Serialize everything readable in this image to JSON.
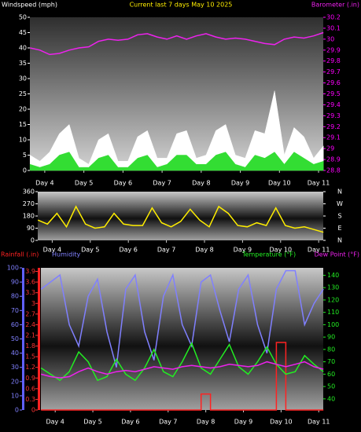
{
  "chart_data": [
    {
      "type": "line",
      "title": "Current last 7 days May 10 2025",
      "x": [
        3.625,
        3.875,
        4.125,
        4.375,
        4.625,
        4.875,
        5.125,
        5.375,
        5.625,
        5.875,
        6.125,
        6.375,
        6.625,
        6.875,
        7.125,
        7.375,
        7.625,
        7.875,
        8.125,
        8.375,
        8.625,
        8.875,
        9.125,
        9.375,
        9.625,
        9.875,
        10.125,
        10.375,
        10.625,
        10.875,
        11.125
      ],
      "xlim": [
        3.62,
        11.12
      ],
      "xticks": [
        {
          "value": 4,
          "label": "Day 4"
        },
        {
          "value": 5,
          "label": "Day 5"
        },
        {
          "value": 6,
          "label": "Day 6"
        },
        {
          "value": 7,
          "label": "Day 7"
        },
        {
          "value": 8,
          "label": "Day 8"
        },
        {
          "value": 9,
          "label": "Day 9"
        },
        {
          "value": 10,
          "label": "Day 10"
        },
        {
          "value": 11,
          "label": "Day 11"
        }
      ],
      "ylim": [
        0,
        50
      ],
      "yticks": [
        0,
        5,
        10,
        15,
        20,
        25,
        30,
        35,
        40,
        45,
        50
      ],
      "y2lim": [
        28.8,
        30.2
      ],
      "y2ticks": [
        28.8,
        28.9,
        29,
        29.1,
        29.2,
        29.3,
        29.4,
        29.5,
        29.6,
        29.7,
        29.8,
        29.9,
        30,
        30.1,
        30.2
      ],
      "series": [
        {
          "name": "Windspeed (mph)",
          "color": "#ffffff",
          "style": "area",
          "values": [
            5,
            3,
            6,
            12,
            15,
            4,
            2,
            10,
            12,
            3,
            3,
            11,
            13,
            4,
            4,
            12,
            13,
            4,
            5,
            13,
            15,
            5,
            4,
            13,
            12,
            26,
            5,
            14,
            11,
            4,
            8
          ]
        },
        {
          "color": "#33dd33",
          "style": "area",
          "values": [
            2,
            1,
            2,
            5,
            6,
            1,
            1,
            4,
            5,
            1,
            1,
            4,
            5,
            1,
            2,
            5,
            5,
            2,
            2,
            5,
            6,
            2,
            1,
            5,
            4,
            6,
            2,
            6,
            4,
            2,
            3
          ]
        },
        {
          "name": "Barometer (.in)",
          "color": "#ee22ee",
          "style": "line",
          "axis": "y2",
          "values": [
            29.92,
            29.9,
            29.86,
            29.87,
            29.9,
            29.92,
            29.93,
            29.98,
            30.0,
            29.99,
            30.0,
            30.04,
            30.05,
            30.02,
            30.0,
            30.03,
            30.0,
            30.03,
            30.05,
            30.02,
            30.0,
            30.01,
            30.0,
            29.98,
            29.96,
            29.95,
            30.0,
            30.02,
            30.01,
            30.03,
            30.06
          ]
        }
      ]
    },
    {
      "type": "line",
      "x": [
        3.625,
        3.875,
        4.125,
        4.375,
        4.625,
        4.875,
        5.125,
        5.375,
        5.625,
        5.875,
        6.125,
        6.375,
        6.625,
        6.875,
        7.125,
        7.375,
        7.625,
        7.875,
        8.125,
        8.375,
        8.625,
        8.875,
        9.125,
        9.375,
        9.625,
        9.875,
        10.125,
        10.375,
        10.625,
        10.875,
        11.125
      ],
      "xlim": [
        3.62,
        11.12
      ],
      "xticks": [
        {
          "value": 4,
          "label": "Day 4"
        },
        {
          "value": 5,
          "label": "Day 5"
        },
        {
          "value": 6,
          "label": "Day 6"
        },
        {
          "value": 7,
          "label": "Day 7"
        },
        {
          "value": 8,
          "label": "Day 8"
        },
        {
          "value": 9,
          "label": "Day 9"
        },
        {
          "value": 10,
          "label": "Day 10"
        },
        {
          "value": 11,
          "label": "Day 11"
        }
      ],
      "ylim": [
        0,
        360
      ],
      "yticks": [
        0,
        90,
        180,
        270,
        360
      ],
      "y2lim": [
        0,
        360
      ],
      "y2ticks": [
        {
          "value": 360,
          "label": "N"
        },
        {
          "value": 270,
          "label": "W"
        },
        {
          "value": 180,
          "label": "S"
        },
        {
          "value": 90,
          "label": "E"
        },
        {
          "value": 0,
          "label": "N"
        }
      ],
      "series": [
        {
          "color": "#ffee00",
          "style": "line",
          "values": [
            150,
            120,
            200,
            100,
            250,
            120,
            90,
            100,
            200,
            120,
            110,
            110,
            240,
            130,
            100,
            140,
            230,
            150,
            100,
            250,
            200,
            110,
            100,
            130,
            110,
            240,
            110,
            90,
            100,
            80,
            60
          ]
        }
      ]
    },
    {
      "type": "line",
      "x": [
        3.625,
        3.875,
        4.125,
        4.375,
        4.625,
        4.875,
        5.125,
        5.375,
        5.625,
        5.875,
        6.125,
        6.375,
        6.625,
        6.875,
        7.125,
        7.375,
        7.625,
        7.875,
        8.125,
        8.375,
        8.625,
        8.875,
        9.125,
        9.375,
        9.625,
        9.875,
        10.125,
        10.375,
        10.625,
        10.875,
        11.125
      ],
      "xlim": [
        3.62,
        11.12
      ],
      "xticks": [
        {
          "value": 4,
          "label": "Day 4"
        },
        {
          "value": 5,
          "label": "Day 5"
        },
        {
          "value": 6,
          "label": "Day 6"
        },
        {
          "value": 7,
          "label": "Day 7"
        },
        {
          "value": 8,
          "label": "Day 8"
        },
        {
          "value": 9,
          "label": "Day 9"
        },
        {
          "value": 10,
          "label": "Day 10"
        },
        {
          "value": 11,
          "label": "Day 11"
        }
      ],
      "ylim": [
        0,
        100
      ],
      "yticks": [
        0,
        10,
        20,
        30,
        40,
        50,
        60,
        70,
        80,
        90,
        100
      ],
      "y2lim": [
        31,
        146
      ],
      "y2ticks": [
        40,
        50,
        60,
        70,
        80,
        90,
        100,
        110,
        120,
        130,
        140
      ],
      "y3lim": [
        0,
        4
      ],
      "y3ticks": [
        0,
        0.3,
        0.6,
        0.9,
        1.2,
        1.5,
        1.8,
        2.1,
        2.4,
        2.7,
        3,
        3.3,
        3.6,
        3.9
      ],
      "series": [
        {
          "name": "Rainfall (.in)",
          "color": "#ff2222",
          "style": "step",
          "axis": "y3",
          "values": [
            0,
            0,
            0,
            0,
            0,
            0,
            0,
            0,
            0,
            0,
            0,
            0,
            0,
            0,
            0,
            0,
            0,
            0.45,
            0,
            0,
            0,
            0,
            0,
            0,
            0,
            1.9,
            0,
            0,
            0,
            0,
            0
          ]
        },
        {
          "name": "Humidity",
          "color": "#8080ff",
          "style": "line",
          "values": [
            85,
            90,
            95,
            60,
            45,
            80,
            92,
            55,
            30,
            85,
            95,
            55,
            35,
            80,
            95,
            60,
            45,
            90,
            95,
            70,
            48,
            85,
            95,
            60,
            40,
            85,
            98,
            98,
            60,
            75,
            85
          ]
        },
        {
          "name": "Temperature (°F)",
          "color": "#22ee22",
          "style": "line",
          "axis": "y2",
          "values": [
            65,
            60,
            55,
            62,
            78,
            70,
            55,
            58,
            72,
            60,
            55,
            65,
            80,
            62,
            58,
            70,
            85,
            65,
            60,
            72,
            84,
            66,
            60,
            70,
            82,
            68,
            60,
            62,
            75,
            68,
            62
          ]
        },
        {
          "name": "Dew Point (°F)",
          "color": "#ee22ee",
          "style": "line",
          "axis": "y2",
          "values": [
            60,
            58,
            57,
            58,
            62,
            65,
            62,
            60,
            62,
            63,
            62,
            64,
            66,
            65,
            64,
            66,
            67,
            66,
            65,
            66,
            68,
            67,
            66,
            67,
            70,
            68,
            66,
            68,
            70,
            66,
            64
          ]
        }
      ]
    }
  ]
}
